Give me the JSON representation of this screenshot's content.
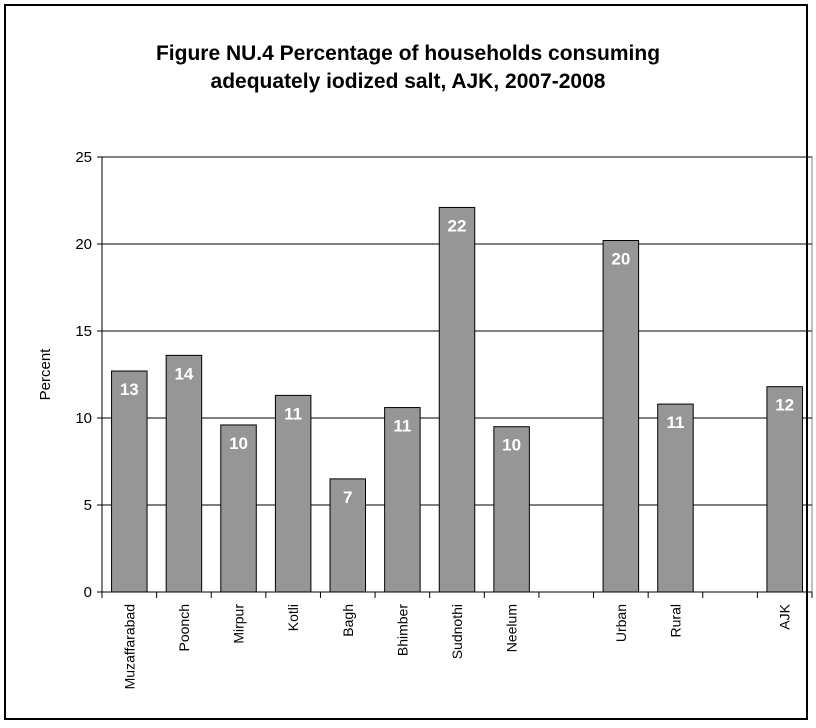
{
  "chart_data": {
    "type": "bar",
    "title_line1": "Figure NU.4 Percentage of households consuming",
    "title_line2": "adequately iodized salt, AJK, 2007-2008",
    "ylabel": "Percent",
    "xlabel": "",
    "ylim": [
      0,
      25
    ],
    "yticks": [
      0,
      5,
      10,
      15,
      20,
      25
    ],
    "grid": true,
    "categories": [
      "Muzaffarabad",
      "Poonch",
      "Mirpur",
      "Kotli",
      "Bagh",
      "Bhimber",
      "Sudnothi",
      "Neelum",
      "",
      "Urban",
      "Rural",
      "",
      "AJK"
    ],
    "values": [
      12.7,
      13.6,
      9.6,
      11.3,
      6.5,
      10.6,
      22.1,
      9.5,
      null,
      20.2,
      10.8,
      null,
      11.8
    ],
    "data_labels": [
      "13",
      "14",
      "10",
      "11",
      "7",
      "11",
      "22",
      "10",
      "",
      "20",
      "11",
      "",
      "12"
    ],
    "colors": {
      "bar": "#969696",
      "bar_edge": "#000000",
      "grid": "#000000",
      "label": "#ffffff"
    }
  }
}
